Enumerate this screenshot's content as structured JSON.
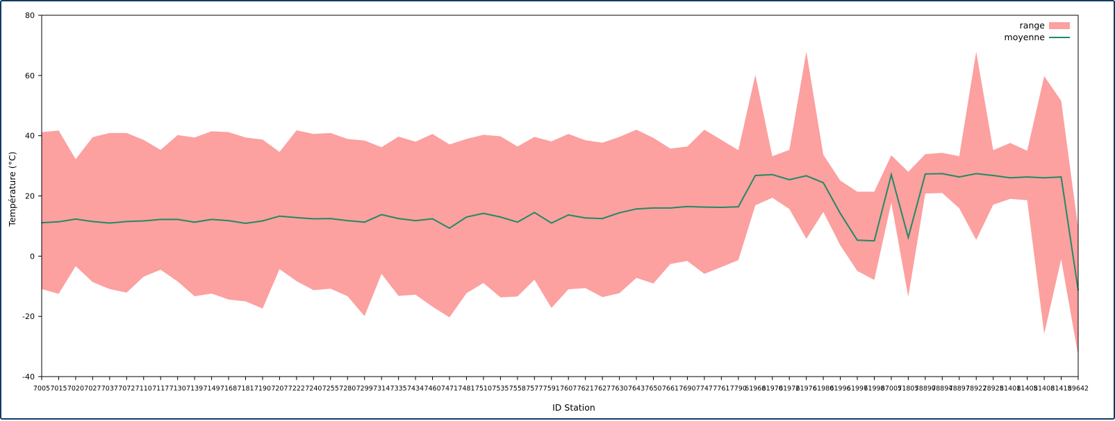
{
  "chart_data": {
    "type": "area",
    "title": "",
    "xlabel": "ID Station",
    "ylabel": "Température (°C)",
    "ylim": [
      -40,
      80
    ],
    "yticks": [
      -40,
      -20,
      0,
      20,
      40,
      60,
      80
    ],
    "legend_position": "top-right",
    "grid": false,
    "categories": [
      "7005",
      "7015",
      "7020",
      "7027",
      "7037",
      "7072",
      "7110",
      "7117",
      "7130",
      "7139",
      "7149",
      "7168",
      "7181",
      "7190",
      "7207",
      "7222",
      "7240",
      "7255",
      "7280",
      "7299",
      "7314",
      "7335",
      "7434",
      "7460",
      "7471",
      "7481",
      "7510",
      "7535",
      "7558",
      "7577",
      "7591",
      "7607",
      "7621",
      "7627",
      "7630",
      "7643",
      "7650",
      "7661",
      "7690",
      "7747",
      "7761",
      "7790",
      "61968",
      "61970",
      "61972",
      "61976",
      "61980",
      "61996",
      "61997",
      "61998",
      "67005",
      "71805",
      "78890",
      "78894",
      "78897",
      "78922",
      "78925",
      "81401",
      "81405",
      "81408",
      "81415",
      "89642"
    ],
    "series": [
      {
        "name": "range",
        "kind": "band",
        "color": "#fca0a0",
        "max": [
          41.2,
          41.7,
          32.2,
          39.5,
          40.9,
          40.9,
          38.6,
          35.3,
          40.2,
          39.4,
          41.5,
          41.2,
          39.4,
          38.7,
          34.6,
          41.8,
          40.6,
          40.9,
          38.9,
          38.4,
          36.2,
          39.7,
          38.0,
          40.6,
          37.1,
          38.9,
          40.3,
          39.8,
          36.4,
          39.6,
          38.1,
          40.6,
          38.5,
          37.7,
          39.6,
          42.0,
          39.3,
          35.7,
          36.4,
          42.0,
          38.6,
          35.2,
          60.2,
          33.2,
          35.3,
          67.9,
          33.7,
          25.1,
          21.4,
          21.4,
          33.5,
          28.0,
          33.9,
          34.3,
          33.2,
          67.9,
          35.2,
          37.6,
          35.0,
          59.8,
          51.6,
          9.2
        ],
        "min": [
          -10.9,
          -12.5,
          -3.3,
          -8.6,
          -10.9,
          -12.1,
          -6.8,
          -4.5,
          -8.4,
          -13.3,
          -12.4,
          -14.4,
          -15.0,
          -17.4,
          -4.3,
          -8.3,
          -11.3,
          -10.8,
          -13.3,
          -19.9,
          -5.9,
          -13.2,
          -12.8,
          -16.8,
          -20.3,
          -12.3,
          -8.9,
          -13.7,
          -13.4,
          -7.8,
          -17.2,
          -11.0,
          -10.6,
          -13.6,
          -12.3,
          -7.2,
          -9.1,
          -2.6,
          -1.6,
          -5.9,
          -3.6,
          -1.3,
          16.9,
          19.4,
          15.7,
          5.8,
          14.7,
          3.6,
          -4.9,
          -7.9,
          17.8,
          -13.5,
          20.8,
          21.0,
          15.9,
          5.4,
          17.1,
          19.0,
          18.6,
          -25.8,
          -1.0,
          -33.0
        ]
      },
      {
        "name": "moyenne",
        "kind": "line",
        "color": "#1f8a63",
        "values": [
          11.1,
          11.4,
          12.3,
          11.5,
          11.0,
          11.5,
          11.7,
          12.2,
          12.2,
          11.3,
          12.2,
          11.8,
          10.9,
          11.7,
          13.3,
          12.8,
          12.4,
          12.5,
          11.8,
          11.3,
          13.8,
          12.5,
          11.8,
          12.4,
          9.3,
          13.0,
          14.2,
          13.0,
          11.3,
          14.5,
          11.0,
          13.7,
          12.7,
          12.5,
          14.4,
          15.7,
          16.0,
          16.0,
          16.5,
          16.3,
          16.2,
          16.4,
          26.8,
          27.1,
          25.4,
          26.7,
          24.4,
          14.2,
          5.3,
          5.1,
          27.1,
          6.2,
          27.3,
          27.4,
          26.3,
          27.4,
          26.8,
          26.0,
          26.3,
          26.0,
          26.3,
          -11.3
        ]
      }
    ]
  }
}
